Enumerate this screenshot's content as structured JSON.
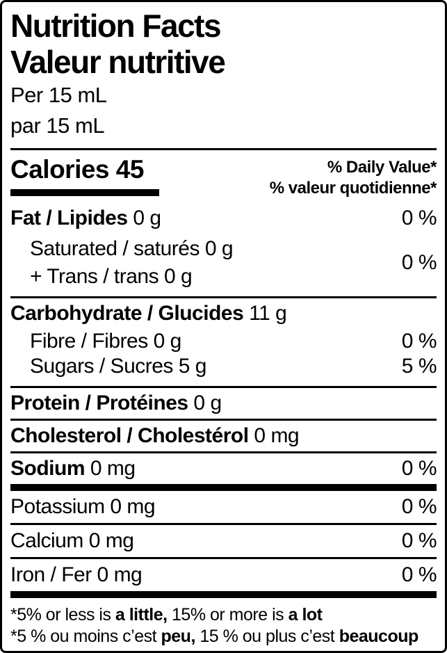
{
  "colors": {
    "text": "#000000",
    "background": "#ffffff",
    "border": "#000000"
  },
  "header": {
    "title_en": "Nutrition Facts",
    "title_fr": "Valeur nutritive",
    "serving_en": "Per 15 mL",
    "serving_fr": "par 15 mL"
  },
  "calories": {
    "label": "Calories",
    "value": "45"
  },
  "daily_value_header": {
    "en": "% Daily Value*",
    "fr": "% valeur quotidienne*"
  },
  "nutrients": [
    {
      "name": "Fat / Lipides",
      "amount": "0 g",
      "dv": "0 %"
    },
    {
      "name": "Carbohydrate / Glucides",
      "amount": "11 g",
      "dv": ""
    },
    {
      "name": "Fibre / Fibres",
      "amount": "0 g",
      "dv": "0 %"
    },
    {
      "name": "Sugars / Sucres",
      "amount": "5 g",
      "dv": "5 %"
    },
    {
      "name": "Protein / Protéines",
      "amount": "0 g",
      "dv": ""
    },
    {
      "name": "Cholesterol / Cholestérol",
      "amount": "0 mg",
      "dv": ""
    },
    {
      "name": "Sodium",
      "amount": "0 mg",
      "dv": "0 %"
    },
    {
      "name": "Potassium",
      "amount": "0 mg",
      "dv": "0 %"
    },
    {
      "name": "Calcium",
      "amount": "0 mg",
      "dv": "0 %"
    },
    {
      "name": "Iron / Fer",
      "amount": "0 mg",
      "dv": "0 %"
    }
  ],
  "saturated_trans": {
    "line1_name": "Saturated / saturés",
    "line1_amount": "0 g",
    "line2_name": "+ Trans / trans",
    "line2_amount": "0 g",
    "dv": "0 %"
  },
  "footnotes": {
    "en_part1": "*5% or less is ",
    "en_bold1": "a little,",
    "en_part2": " 15% or more is ",
    "en_bold2": "a lot",
    "fr_part1": "*5 % ou moins c’est ",
    "fr_bold1": "peu,",
    "fr_part2": " 15 % ou plus c’est ",
    "fr_bold2": "beaucoup"
  }
}
